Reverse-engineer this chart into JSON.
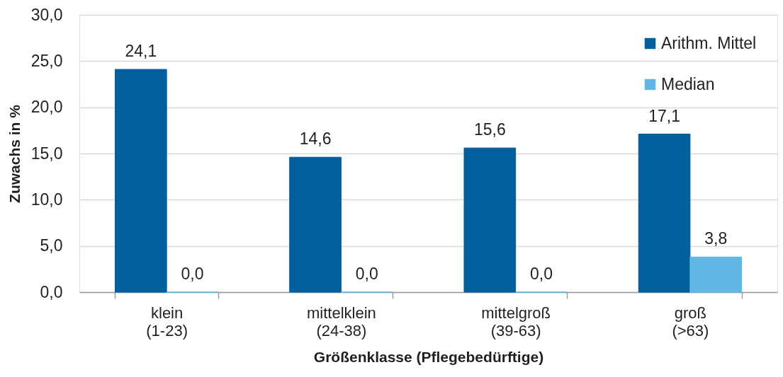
{
  "chart_data": {
    "type": "bar",
    "categories": [
      "klein\n(1-23)",
      "mittelklein\n(24-38)",
      "mittelgroß\n(39-63)",
      "groß\n(>63)"
    ],
    "series": [
      {
        "name": "Arithm. Mittel",
        "color": "#025f9e",
        "values": [
          24.1,
          14.6,
          15.6,
          17.1
        ],
        "value_labels": [
          "24,1",
          "14,6",
          "15,6",
          "17,1"
        ]
      },
      {
        "name": "Median",
        "color": "#60b7e6",
        "values": [
          0.0,
          0.0,
          0.0,
          3.8
        ],
        "value_labels": [
          "0,0",
          "0,0",
          "0,0",
          "3,8"
        ]
      }
    ],
    "xlabel": "Größenklasse (Pflegebedürftige)",
    "ylabel": "Zuwachs in %",
    "ylim": [
      0,
      30
    ],
    "yticks": [
      {
        "value": 0,
        "label": "0,0"
      },
      {
        "value": 5,
        "label": "5,0"
      },
      {
        "value": 10,
        "label": "10,0"
      },
      {
        "value": 15,
        "label": "15,0"
      },
      {
        "value": 20,
        "label": "20,0"
      },
      {
        "value": 25,
        "label": "25,0"
      },
      {
        "value": 30,
        "label": "30,0"
      }
    ],
    "grid": "y",
    "legend": "top right"
  }
}
